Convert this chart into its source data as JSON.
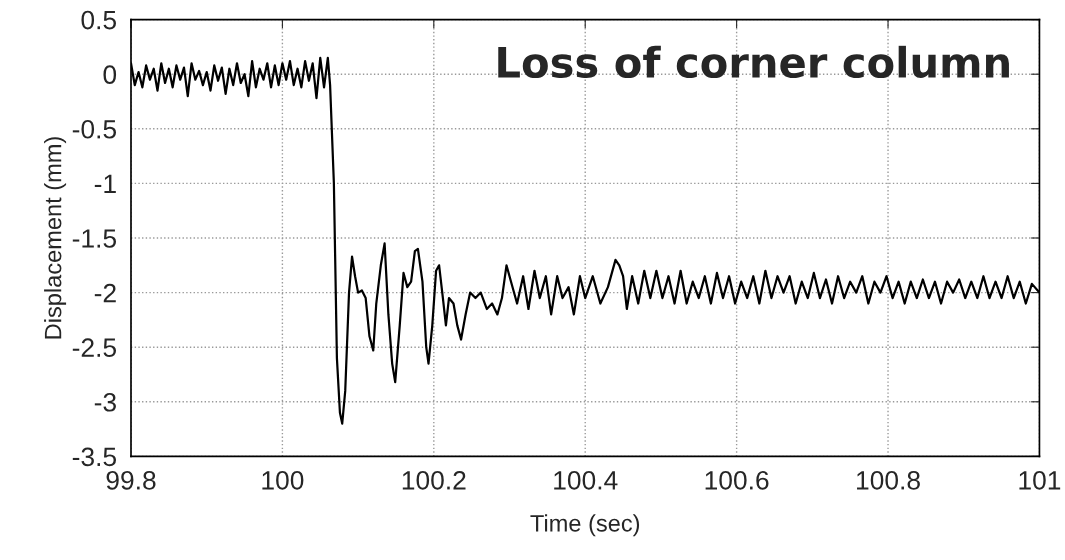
{
  "chart_data": {
    "type": "line",
    "xlabel": "Time (sec)",
    "ylabel": "Displacement (mm)",
    "annotations": [
      "Loss of corner column"
    ],
    "xlim": [
      99.8,
      101
    ],
    "xticks": [
      99.8,
      100,
      100.2,
      100.4,
      100.6,
      100.8,
      101
    ],
    "ylim": [
      -3.5,
      0.5
    ],
    "yticks": [
      0.5,
      0,
      -0.5,
      -1,
      -1.5,
      -2,
      -2.5,
      -3,
      -3.5
    ],
    "grid": true,
    "marker": "none",
    "line_style": "solid",
    "series": [
      {
        "color": "#000000",
        "x": [
          99.8,
          99.805,
          99.81,
          99.815,
          99.82,
          99.825,
          99.83,
          99.835,
          99.84,
          99.845,
          99.85,
          99.855,
          99.86,
          99.865,
          99.87,
          99.875,
          99.88,
          99.885,
          99.89,
          99.895,
          99.9,
          99.905,
          99.91,
          99.915,
          99.92,
          99.925,
          99.93,
          99.935,
          99.94,
          99.945,
          99.95,
          99.955,
          99.96,
          99.965,
          99.97,
          99.975,
          99.98,
          99.985,
          99.99,
          99.995,
          100.0,
          100.005,
          100.01,
          100.015,
          100.02,
          100.025,
          100.03,
          100.035,
          100.04,
          100.045,
          100.05,
          100.055,
          100.06,
          100.063,
          100.068,
          100.072,
          100.076,
          100.079,
          100.083,
          100.088,
          100.092,
          100.096,
          100.1,
          100.105,
          100.11,
          100.115,
          100.12,
          100.124,
          100.13,
          100.135,
          100.14,
          100.145,
          100.149,
          100.155,
          100.16,
          100.165,
          100.17,
          100.175,
          100.179,
          100.185,
          100.19,
          100.193,
          100.198,
          100.203,
          100.207,
          100.212,
          100.216,
          100.22,
          100.226,
          100.231,
          100.236,
          100.242,
          100.248,
          100.255,
          100.262,
          100.27,
          100.277,
          100.284,
          100.29,
          100.296,
          100.302,
          100.31,
          100.318,
          100.325,
          100.333,
          100.34,
          100.348,
          100.355,
          100.363,
          100.37,
          100.378,
          100.385,
          100.393,
          100.4,
          100.41,
          100.42,
          100.43,
          100.44,
          100.445,
          100.45,
          100.455,
          100.462,
          100.47,
          100.478,
          100.486,
          100.494,
          100.502,
          100.51,
          100.518,
          100.526,
          100.534,
          100.542,
          100.55,
          100.558,
          100.566,
          100.574,
          100.582,
          100.59,
          100.598,
          100.606,
          100.614,
          100.622,
          100.63,
          100.638,
          100.646,
          100.654,
          100.662,
          100.67,
          100.678,
          100.686,
          100.694,
          100.702,
          100.71,
          100.718,
          100.726,
          100.734,
          100.742,
          100.75,
          100.758,
          100.766,
          100.774,
          100.782,
          100.79,
          100.798,
          100.806,
          100.814,
          100.822,
          100.83,
          100.838,
          100.846,
          100.854,
          100.862,
          100.87,
          100.878,
          100.886,
          100.894,
          100.902,
          100.91,
          100.918,
          100.926,
          100.934,
          100.942,
          100.95,
          100.958,
          100.966,
          100.974,
          100.982,
          100.99,
          101.0
        ],
        "values": [
          0.1,
          -0.1,
          0.02,
          -0.12,
          0.08,
          -0.05,
          0.05,
          -0.15,
          0.1,
          -0.08,
          0.05,
          -0.12,
          0.08,
          -0.05,
          0.06,
          -0.2,
          0.1,
          -0.05,
          0.03,
          -0.1,
          0.02,
          -0.15,
          0.08,
          -0.06,
          0.06,
          -0.18,
          0.05,
          -0.1,
          0.1,
          -0.08,
          0.0,
          -0.2,
          0.12,
          -0.12,
          0.05,
          -0.05,
          0.1,
          -0.12,
          0.08,
          -0.1,
          0.1,
          -0.05,
          0.12,
          -0.1,
          0.05,
          -0.12,
          0.12,
          -0.06,
          0.1,
          -0.22,
          0.15,
          -0.12,
          0.15,
          -0.1,
          -1.0,
          -2.6,
          -3.1,
          -3.2,
          -2.9,
          -2.0,
          -1.67,
          -1.85,
          -2.0,
          -1.98,
          -2.05,
          -2.4,
          -2.53,
          -2.1,
          -1.75,
          -1.55,
          -2.2,
          -2.65,
          -2.82,
          -2.3,
          -1.82,
          -1.95,
          -1.9,
          -1.62,
          -1.6,
          -1.9,
          -2.5,
          -2.65,
          -2.3,
          -1.8,
          -1.75,
          -2.05,
          -2.3,
          -2.05,
          -2.1,
          -2.3,
          -2.43,
          -2.2,
          -2.0,
          -2.05,
          -2.0,
          -2.15,
          -2.1,
          -2.2,
          -2.05,
          -1.75,
          -1.9,
          -2.1,
          -1.85,
          -2.15,
          -1.8,
          -2.05,
          -1.85,
          -2.2,
          -1.85,
          -2.05,
          -1.95,
          -2.2,
          -1.85,
          -2.05,
          -1.85,
          -2.1,
          -1.95,
          -1.7,
          -1.75,
          -1.85,
          -2.15,
          -1.85,
          -2.1,
          -1.8,
          -2.05,
          -1.8,
          -2.05,
          -1.85,
          -2.1,
          -1.8,
          -2.1,
          -1.9,
          -2.05,
          -1.85,
          -2.1,
          -1.82,
          -2.05,
          -1.85,
          -2.1,
          -1.9,
          -2.05,
          -1.85,
          -2.1,
          -1.8,
          -2.05,
          -1.85,
          -2.0,
          -1.85,
          -2.1,
          -1.9,
          -2.05,
          -1.82,
          -2.05,
          -1.88,
          -2.1,
          -1.85,
          -2.05,
          -1.9,
          -2.0,
          -1.85,
          -2.1,
          -1.9,
          -2.0,
          -1.85,
          -2.05,
          -1.9,
          -2.1,
          -1.9,
          -2.05,
          -1.88,
          -2.05,
          -1.9,
          -2.1,
          -1.9,
          -2.0,
          -1.88,
          -2.05,
          -1.9,
          -2.05,
          -1.85,
          -2.05,
          -1.9,
          -2.05,
          -1.85,
          -2.05,
          -1.9,
          -2.1,
          -1.92,
          -2.0
        ]
      }
    ]
  }
}
